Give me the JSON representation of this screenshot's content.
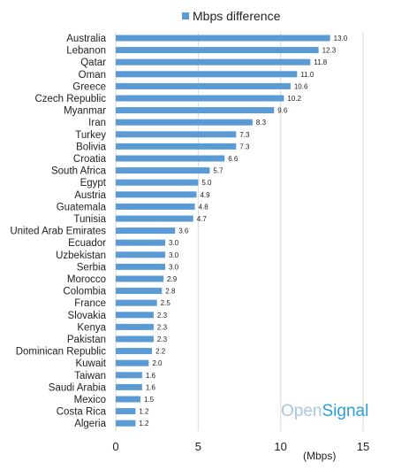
{
  "chart_data": {
    "type": "bar",
    "orientation": "horizontal",
    "title": "",
    "legend": {
      "label": "Mbps difference",
      "position": "top-right"
    },
    "categories": [
      "Australia",
      "Lebanon",
      "Qatar",
      "Oman",
      "Greece",
      "Czech Republic",
      "Myanmar",
      "Iran",
      "Turkey",
      "Bolivia",
      "Croatia",
      "South Africa",
      "Egypt",
      "Austria",
      "Guatemala",
      "Tunisia",
      "United Arab Emirates",
      "Ecuador",
      "Uzbekistan",
      "Serbia",
      "Morocco",
      "Colombia",
      "France",
      "Slovakia",
      "Kenya",
      "Pakistan",
      "Dominican Republic",
      "Kuwait",
      "Taiwan",
      "Saudi Arabia",
      "Mexico",
      "Costa Rica",
      "Algeria"
    ],
    "values": [
      13.0,
      12.3,
      11.8,
      11.0,
      10.6,
      10.2,
      9.6,
      8.3,
      7.3,
      7.3,
      6.6,
      5.7,
      5.0,
      4.9,
      4.8,
      4.7,
      3.6,
      3.0,
      3.0,
      3.0,
      2.9,
      2.8,
      2.5,
      2.3,
      2.3,
      2.3,
      2.2,
      2.0,
      1.6,
      1.6,
      1.5,
      1.2,
      1.2
    ],
    "value_labels": [
      "13.0",
      "12.3",
      "11.8",
      "11.0",
      "10.6",
      "10.2",
      "9.6",
      "8.3",
      "7.3",
      "7.3",
      "6.6",
      "5.7",
      "5.0",
      "4.9",
      "4.8",
      "4.7",
      "3.6",
      "3.0",
      "3.0",
      "3.0",
      "2.9",
      "2.8",
      "2.5",
      "2.3",
      "2.3",
      "2.3",
      "2.2",
      "2.0",
      "1.6",
      "1.6",
      "1.5",
      "1.2",
      "1.2"
    ],
    "xlim": [
      0,
      15
    ],
    "xticks": [
      "0",
      "5",
      "10",
      "15"
    ],
    "xlabel": "(Mbps)",
    "grid": "vertical",
    "color": "#5b9bd5"
  },
  "watermark": {
    "part1": "Open",
    "part2": "Signal"
  }
}
